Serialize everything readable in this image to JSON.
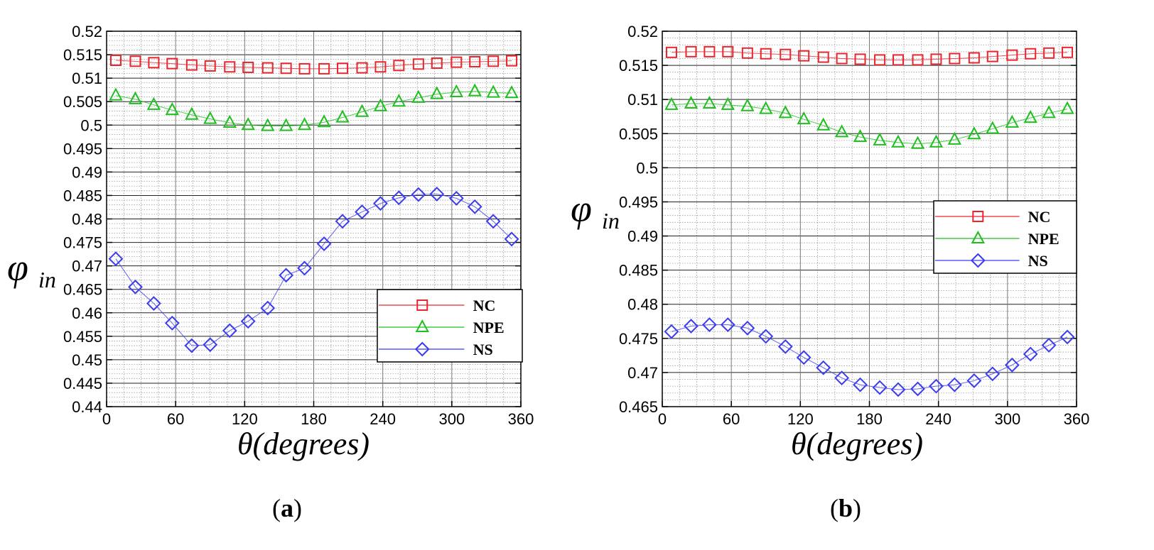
{
  "chart_data": [
    {
      "type": "line",
      "panel_label": "a",
      "xlabel": "θ(degrees)",
      "ylabel_main": "φ",
      "ylabel_sub": "in",
      "xlim": [
        0,
        360
      ],
      "ylim": [
        0.44,
        0.52
      ],
      "xticks": [
        0,
        60,
        120,
        180,
        240,
        300,
        360
      ],
      "xtick_labels": [
        "0",
        "60",
        "120",
        "180",
        "240",
        "300",
        "360"
      ],
      "yticks": [
        0.44,
        0.445,
        0.45,
        0.455,
        0.46,
        0.465,
        0.47,
        0.475,
        0.48,
        0.485,
        0.49,
        0.495,
        0.5,
        0.505,
        0.51,
        0.515,
        0.52
      ],
      "ytick_labels": [
        "0.44",
        "0.445",
        "0.45",
        "0.455",
        "0.46",
        "0.465",
        "0.47",
        "0.475",
        "0.48",
        "0.485",
        "0.49",
        "0.495",
        "0.5",
        "0.505",
        "0.51",
        "0.515",
        "0.52"
      ],
      "grid": true,
      "legend_position": "lower-right",
      "x": [
        8,
        25,
        41,
        57,
        74,
        90,
        107,
        123,
        140,
        156,
        172,
        189,
        205,
        222,
        238,
        254,
        271,
        287,
        304,
        320,
        336,
        352
      ],
      "series": [
        {
          "name": "NC",
          "marker": "square",
          "color": "#e8262d",
          "values": [
            0.5138,
            0.5136,
            0.5133,
            0.5131,
            0.5128,
            0.5126,
            0.5124,
            0.5123,
            0.5122,
            0.5121,
            0.512,
            0.512,
            0.5121,
            0.5122,
            0.5124,
            0.5127,
            0.513,
            0.5132,
            0.5134,
            0.5135,
            0.5136,
            0.5137
          ]
        },
        {
          "name": "NPE",
          "marker": "triangle",
          "color": "#1fbf1f",
          "values": [
            0.5063,
            0.5055,
            0.5043,
            0.5032,
            0.5022,
            0.5013,
            0.5005,
            0.5,
            0.4998,
            0.4998,
            0.5,
            0.5006,
            0.5016,
            0.5028,
            0.504,
            0.505,
            0.5058,
            0.5066,
            0.507,
            0.5072,
            0.5069,
            0.5068
          ]
        },
        {
          "name": "NS",
          "marker": "diamond",
          "color": "#3b3bf0",
          "values": [
            0.4715,
            0.4655,
            0.462,
            0.4578,
            0.453,
            0.4532,
            0.4562,
            0.4582,
            0.461,
            0.468,
            0.4695,
            0.4747,
            0.4795,
            0.4815,
            0.4833,
            0.4845,
            0.4852,
            0.4853,
            0.4844,
            0.4826,
            0.4795,
            0.4757
          ]
        }
      ]
    },
    {
      "type": "line",
      "panel_label": "b",
      "xlabel": "θ(degrees)",
      "ylabel_main": "φ",
      "ylabel_sub": "in",
      "xlim": [
        0,
        360
      ],
      "ylim": [
        0.465,
        0.52
      ],
      "xticks": [
        0,
        60,
        120,
        180,
        240,
        300,
        360
      ],
      "xtick_labels": [
        "0",
        "60",
        "120",
        "180",
        "240",
        "300",
        "360"
      ],
      "yticks": [
        0.465,
        0.47,
        0.475,
        0.48,
        0.485,
        0.49,
        0.495,
        0.5,
        0.505,
        0.51,
        0.515,
        0.52
      ],
      "ytick_labels": [
        "0.465",
        "0.47",
        "0.475",
        "0.48",
        "0.485",
        "0.49",
        "0.495",
        "0.5",
        "0.505",
        "0.51",
        "0.515",
        "0.52"
      ],
      "grid": true,
      "legend_position": "center-right",
      "x": [
        8,
        25,
        41,
        57,
        74,
        90,
        107,
        123,
        140,
        156,
        172,
        189,
        205,
        222,
        238,
        254,
        271,
        287,
        304,
        320,
        336,
        352
      ],
      "series": [
        {
          "name": "NC",
          "marker": "square",
          "color": "#e8262d",
          "values": [
            0.5169,
            0.517,
            0.517,
            0.517,
            0.5168,
            0.5167,
            0.5166,
            0.5164,
            0.5162,
            0.516,
            0.5159,
            0.5158,
            0.5158,
            0.5158,
            0.5159,
            0.516,
            0.5161,
            0.5163,
            0.5165,
            0.5167,
            0.5168,
            0.5169
          ]
        },
        {
          "name": "NPE",
          "marker": "triangle",
          "color": "#1fbf1f",
          "values": [
            0.5092,
            0.5094,
            0.5094,
            0.5092,
            0.509,
            0.5086,
            0.508,
            0.5071,
            0.5062,
            0.5052,
            0.5045,
            0.504,
            0.5037,
            0.5035,
            0.5037,
            0.5041,
            0.5049,
            0.5057,
            0.5066,
            0.5073,
            0.508,
            0.5086
          ]
        },
        {
          "name": "NS",
          "marker": "diamond",
          "color": "#3b3bf0",
          "values": [
            0.476,
            0.4768,
            0.477,
            0.477,
            0.4765,
            0.4753,
            0.4738,
            0.4722,
            0.4707,
            0.4692,
            0.4682,
            0.4678,
            0.4675,
            0.4676,
            0.468,
            0.4682,
            0.4688,
            0.4698,
            0.4711,
            0.4727,
            0.474,
            0.4752
          ]
        }
      ]
    }
  ]
}
